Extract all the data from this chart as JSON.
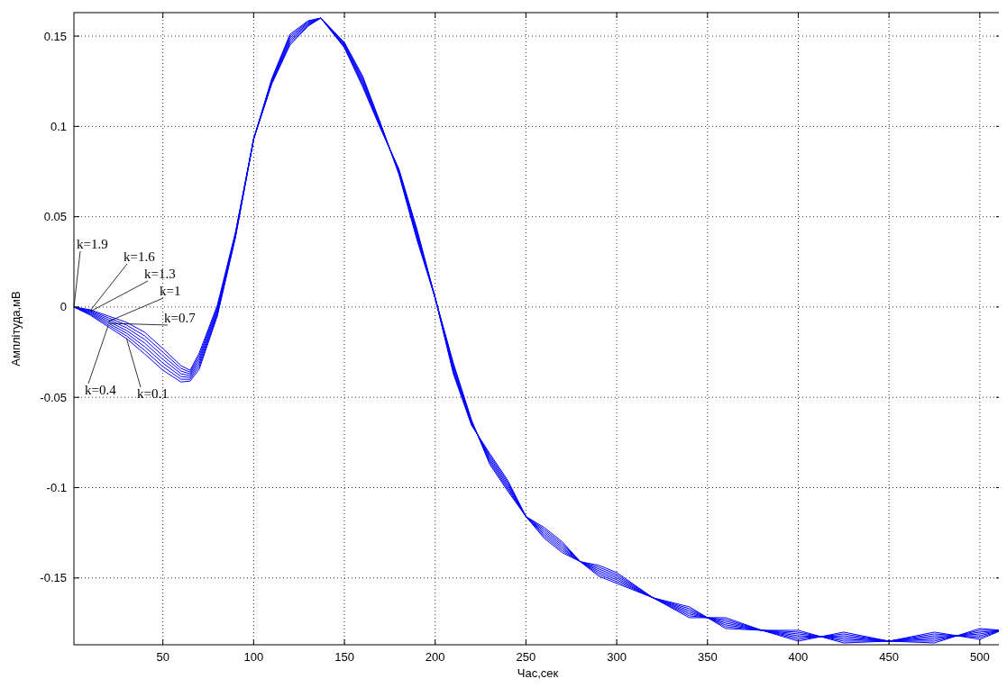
{
  "chart_data": {
    "type": "line",
    "xlabel": "Час,сек",
    "ylabel": "Амплітуда,мВ",
    "x": [
      1,
      10,
      20,
      30,
      40,
      50,
      60,
      65,
      70,
      80,
      90,
      100,
      110,
      120,
      130,
      137,
      150,
      160,
      170,
      180,
      190,
      200,
      210,
      220,
      230,
      240,
      250,
      260,
      270,
      280,
      290,
      300,
      320,
      340,
      360,
      380,
      400,
      425,
      450,
      475,
      500,
      512
    ],
    "series": [
      {
        "color": "#0000ff",
        "values": [
          0,
          -0.0045,
          -0.011,
          -0.0175,
          -0.026,
          -0.035,
          -0.0415,
          -0.041,
          -0.0345,
          -0.005,
          0.0385,
          0.093,
          0.1235,
          0.145,
          0.1555,
          0.16,
          0.1465,
          0.128,
          0.1015,
          0.0735,
          0.037,
          0.005,
          -0.031,
          -0.0625,
          -0.087,
          -0.102,
          -0.116,
          -0.122,
          -0.13,
          -0.141,
          -0.149,
          -0.153,
          -0.161,
          -0.166,
          -0.178,
          -0.179,
          -0.179,
          -0.186,
          -0.185,
          -0.18,
          -0.184,
          -0.179
        ]
      },
      {
        "color": "#0000ff",
        "values": [
          0,
          -0.004,
          -0.01,
          -0.016,
          -0.024,
          -0.033,
          -0.04,
          -0.04,
          -0.033,
          -0.004,
          0.039,
          0.093,
          0.124,
          0.146,
          0.156,
          0.16,
          0.146,
          0.127,
          0.101,
          0.074,
          0.038,
          0.005,
          -0.032,
          -0.063,
          -0.086,
          -0.101,
          -0.116,
          -0.123,
          -0.131,
          -0.141,
          -0.148,
          -0.152,
          -0.161,
          -0.167,
          -0.177,
          -0.179,
          -0.18,
          -0.185,
          -0.185,
          -0.181,
          -0.183,
          -0.179
        ]
      },
      {
        "color": "#0000ff",
        "values": [
          0,
          -0.0035,
          -0.009,
          -0.0145,
          -0.022,
          -0.031,
          -0.0385,
          -0.039,
          -0.0315,
          -0.003,
          0.0395,
          0.093,
          0.1245,
          0.147,
          0.1565,
          0.16,
          0.1455,
          0.126,
          0.1005,
          0.0745,
          0.039,
          0.005,
          -0.033,
          -0.0635,
          -0.085,
          -0.1,
          -0.116,
          -0.124,
          -0.132,
          -0.141,
          -0.147,
          -0.151,
          -0.161,
          -0.168,
          -0.176,
          -0.179,
          -0.181,
          -0.184,
          -0.185,
          -0.182,
          -0.182,
          -0.179
        ]
      },
      {
        "color": "#0000ff",
        "values": [
          0,
          -0.003,
          -0.008,
          -0.013,
          -0.02,
          -0.029,
          -0.037,
          -0.038,
          -0.03,
          -0.002,
          0.04,
          0.093,
          0.125,
          0.148,
          0.157,
          0.16,
          0.145,
          0.125,
          0.1,
          0.075,
          0.04,
          0.005,
          -0.034,
          -0.064,
          -0.084,
          -0.099,
          -0.116,
          -0.125,
          -0.133,
          -0.141,
          -0.146,
          -0.15,
          -0.161,
          -0.169,
          -0.175,
          -0.179,
          -0.182,
          -0.183,
          -0.185,
          -0.183,
          -0.181,
          -0.179
        ]
      },
      {
        "color": "#0000ff",
        "values": [
          0,
          -0.0025,
          -0.007,
          -0.0115,
          -0.018,
          -0.027,
          -0.0355,
          -0.037,
          -0.0285,
          -0.001,
          0.0405,
          0.093,
          0.1255,
          0.149,
          0.1575,
          0.16,
          0.1445,
          0.124,
          0.0995,
          0.0755,
          0.041,
          0.005,
          -0.035,
          -0.0645,
          -0.083,
          -0.098,
          -0.116,
          -0.126,
          -0.134,
          -0.141,
          -0.145,
          -0.149,
          -0.161,
          -0.17,
          -0.174,
          -0.179,
          -0.183,
          -0.182,
          -0.185,
          -0.184,
          -0.18,
          -0.179
        ]
      },
      {
        "color": "#0000ff",
        "values": [
          0,
          -0.002,
          -0.006,
          -0.01,
          -0.016,
          -0.025,
          -0.034,
          -0.036,
          -0.027,
          0,
          0.041,
          0.093,
          0.126,
          0.15,
          0.158,
          0.16,
          0.144,
          0.123,
          0.099,
          0.076,
          0.042,
          0.005,
          -0.036,
          -0.065,
          -0.082,
          -0.097,
          -0.116,
          -0.127,
          -0.135,
          -0.141,
          -0.144,
          -0.148,
          -0.161,
          -0.171,
          -0.173,
          -0.179,
          -0.184,
          -0.181,
          -0.185,
          -0.185,
          -0.179,
          -0.179
        ]
      },
      {
        "color": "#0000ff",
        "values": [
          0,
          -0.0015,
          -0.005,
          -0.0085,
          -0.014,
          -0.023,
          -0.0325,
          -0.035,
          -0.0255,
          0.001,
          0.0415,
          0.093,
          0.1265,
          0.151,
          0.1585,
          0.16,
          0.1435,
          0.122,
          0.0985,
          0.0765,
          0.043,
          0.005,
          -0.037,
          -0.0655,
          -0.081,
          -0.096,
          -0.116,
          -0.128,
          -0.136,
          -0.141,
          -0.143,
          -0.147,
          -0.161,
          -0.172,
          -0.172,
          -0.179,
          -0.185,
          -0.18,
          -0.185,
          -0.186,
          -0.178,
          -0.179
        ]
      }
    ],
    "xlim": [
      1,
      512
    ],
    "xticks": [
      50,
      100,
      150,
      200,
      250,
      300,
      350,
      400,
      450,
      500
    ],
    "ylim": [
      -0.187,
      0.163
    ],
    "yticks": [
      -0.15,
      -0.1,
      -0.05,
      0,
      0.05,
      0.1,
      0.15
    ],
    "annotations": [
      {
        "text": "k=0.1",
        "x": 30,
        "y": -0.0175
      },
      {
        "text": "k=0.4",
        "x": 20,
        "y": -0.01
      },
      {
        "text": "k=0.7",
        "x": 20,
        "y": -0.009
      },
      {
        "text": "k=1",
        "x": 20,
        "y": -0.008
      },
      {
        "text": "k=1.3",
        "x": 10,
        "y": -0.0025
      },
      {
        "text": "k=1.6",
        "x": 10,
        "y": -0.002
      },
      {
        "text": "k=1.9",
        "x": 1,
        "y": 0
      }
    ],
    "grid": true,
    "marker": "none",
    "line_style": "solid"
  }
}
